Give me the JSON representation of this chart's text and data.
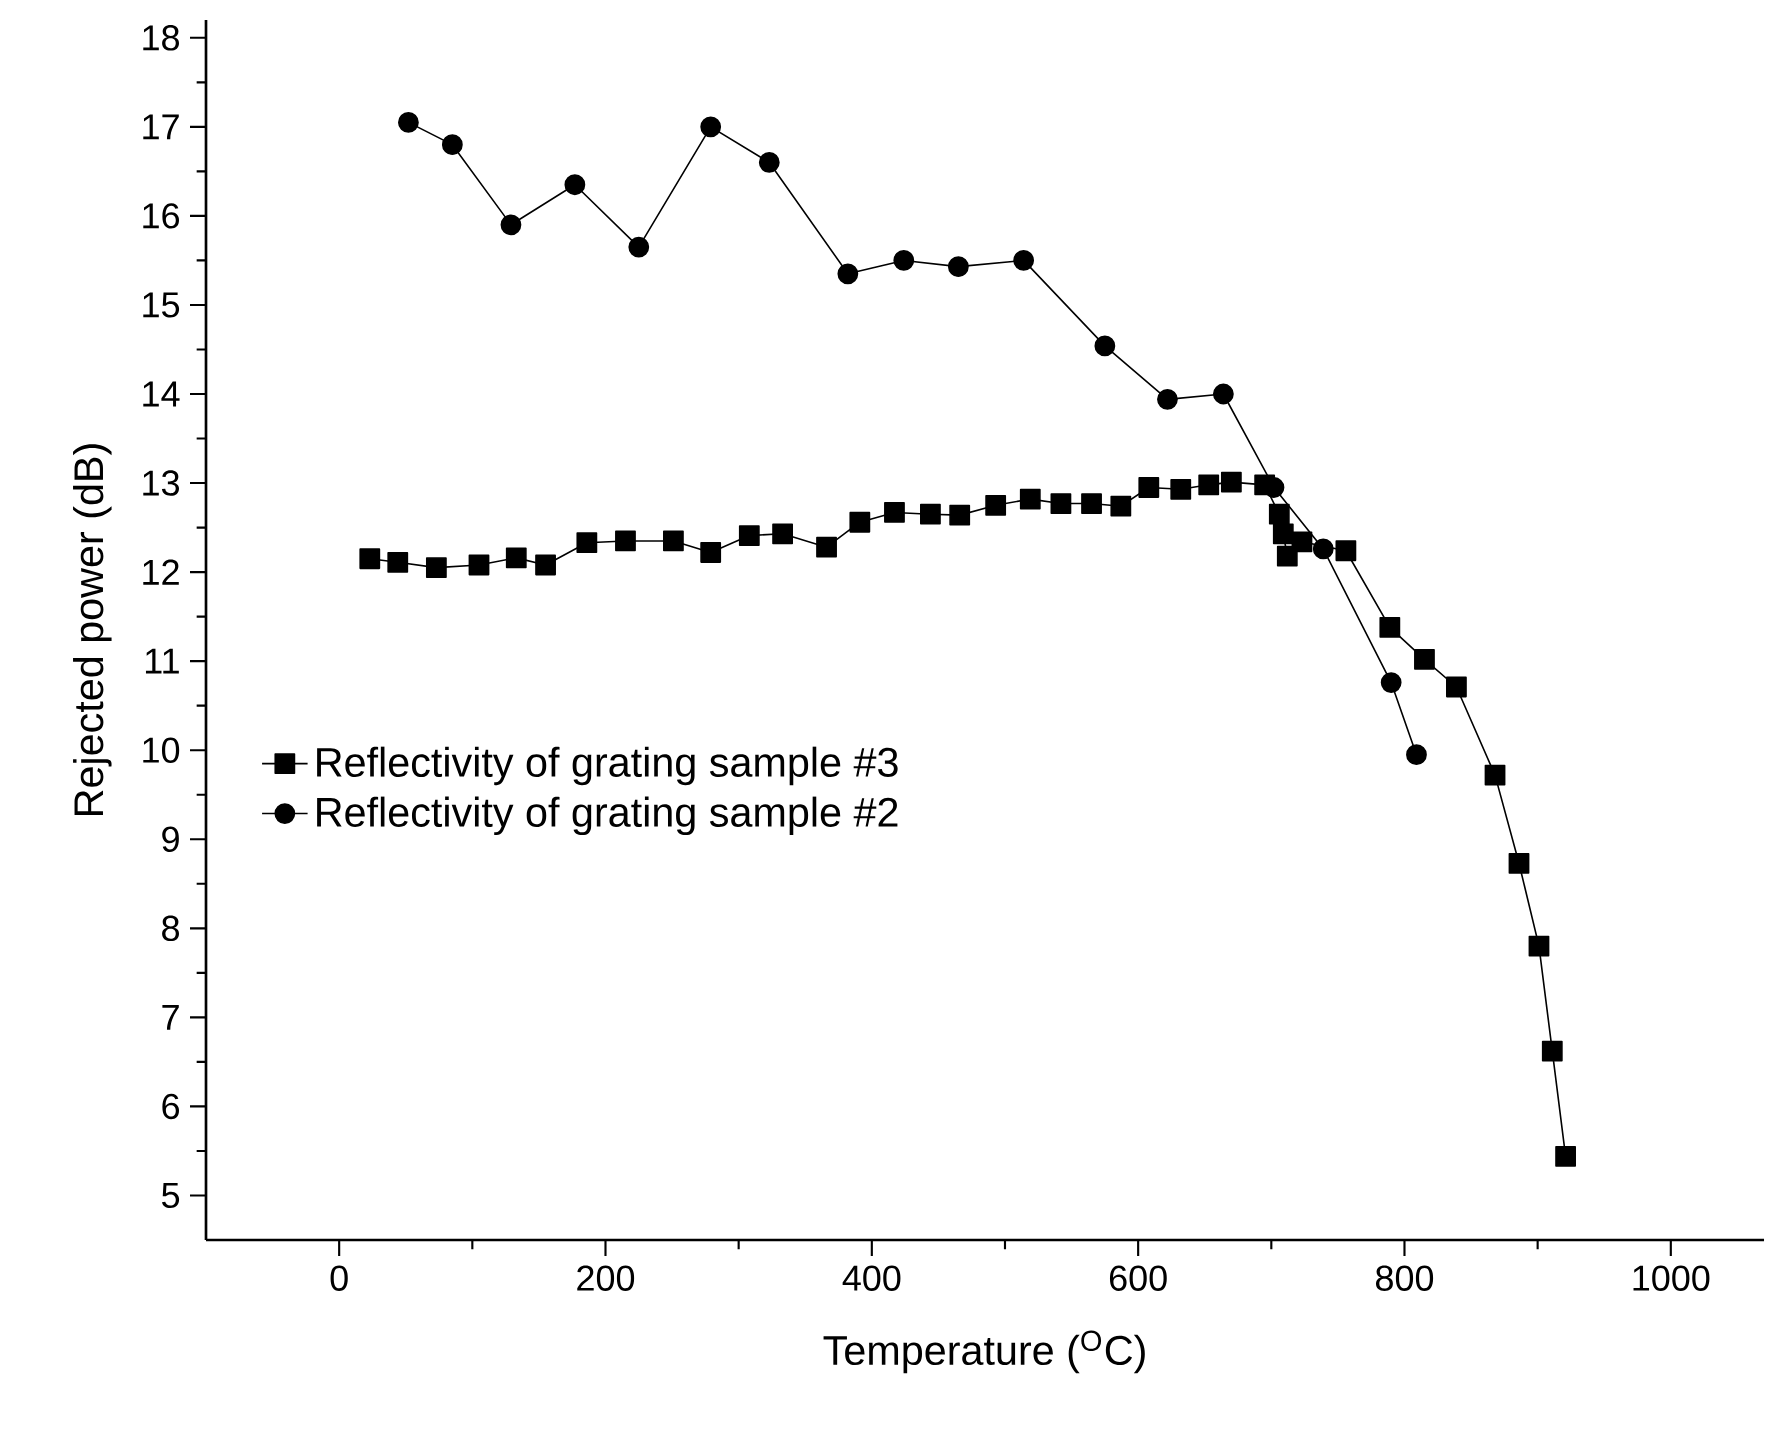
{
  "chart_data": {
    "type": "line",
    "xlabel": "Temperature ($^{O}$C)",
    "ylabel": "Rejected power (dB)",
    "xlim": [
      -100,
      1070
    ],
    "ylim": [
      4.5,
      18.2
    ],
    "xticks": [
      0,
      200,
      400,
      600,
      800,
      1000
    ],
    "yticks": [
      5,
      6,
      7,
      8,
      9,
      10,
      11,
      12,
      13,
      14,
      15,
      16,
      17,
      18
    ],
    "grid": false,
    "legend": "left",
    "line_style": "solid",
    "series": [
      {
        "name": "Reflectivity of grating sample #3",
        "color": "#000000",
        "marker": "square",
        "x": [
          23,
          44,
          73,
          105,
          133,
          155,
          186,
          215,
          251,
          279,
          308,
          333,
          366,
          391,
          417,
          444,
          466,
          493,
          519,
          542,
          565,
          587,
          608,
          632,
          653,
          670,
          695,
          706,
          709,
          712,
          723,
          756,
          789,
          815,
          839,
          868,
          886,
          901,
          911,
          921
        ],
        "values": [
          12.15,
          12.11,
          12.05,
          12.08,
          12.16,
          12.08,
          12.33,
          12.35,
          12.35,
          12.22,
          12.41,
          12.43,
          12.28,
          12.56,
          12.67,
          12.65,
          12.64,
          12.75,
          12.82,
          12.77,
          12.77,
          12.74,
          12.95,
          12.93,
          12.98,
          13.01,
          12.98,
          12.65,
          12.43,
          12.18,
          12.34,
          12.24,
          11.38,
          11.02,
          10.71,
          9.72,
          8.73,
          7.8,
          6.62,
          5.44
        ]
      },
      {
        "name": "Reflectivity of grating sample #2",
        "color": "#000000",
        "marker": "circle",
        "x": [
          52,
          85,
          129,
          177,
          225,
          279,
          323,
          382,
          424,
          465,
          514,
          575,
          622,
          664,
          702,
          739,
          790,
          809
        ],
        "values": [
          17.05,
          16.8,
          15.9,
          16.35,
          15.65,
          17.0,
          16.6,
          15.35,
          15.5,
          15.43,
          15.5,
          14.54,
          13.94,
          14.0,
          12.95,
          12.26,
          10.76,
          9.95
        ]
      }
    ]
  }
}
